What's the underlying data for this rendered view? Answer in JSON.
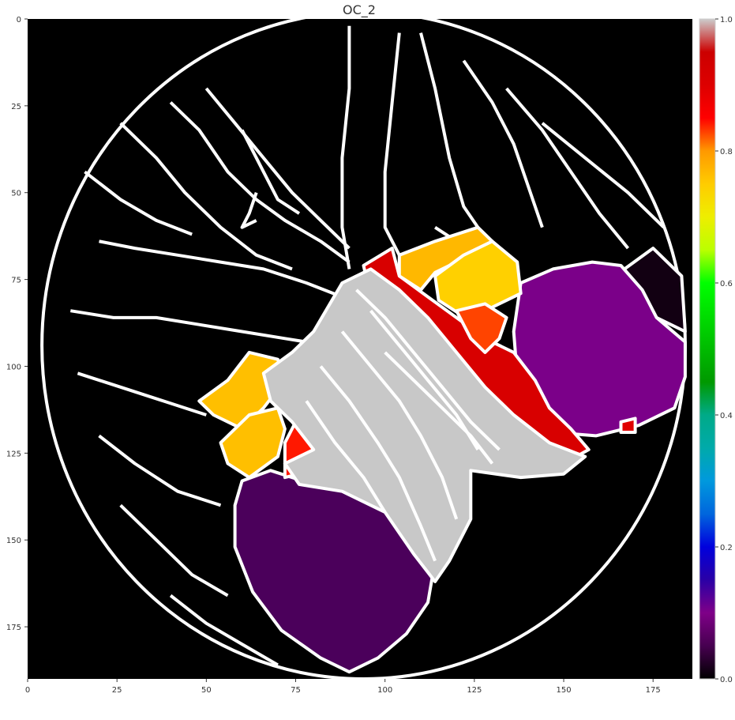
{
  "chart_data": {
    "type": "heatmap",
    "title": "OC_2",
    "xlabel": "",
    "ylabel": "",
    "xlim": [
      0,
      186
    ],
    "ylim": [
      190,
      0
    ],
    "x_ticks": [
      0,
      25,
      50,
      75,
      100,
      125,
      150,
      175
    ],
    "y_ticks": [
      0,
      25,
      50,
      75,
      100,
      125,
      150,
      175
    ],
    "colorbar": {
      "colormap": "nipy_spectral",
      "range": [
        0,
        1
      ],
      "ticks": [
        "0.0",
        "0.2",
        "0.4",
        "0.6",
        "0.8",
        "1.0"
      ]
    },
    "grid": false,
    "background_color": "#000000",
    "outline_color": "#ffffff",
    "brain_outline": {
      "center": [
        94,
        94
      ],
      "radius_x": 90,
      "radius_y": 96
    },
    "parcels": [
      {
        "name": "upper-right-small",
        "value": 0.04,
        "color": "#120012",
        "points": [
          [
            167,
            72
          ],
          [
            175,
            66
          ],
          [
            183,
            74
          ],
          [
            184,
            90
          ],
          [
            176,
            86
          ],
          [
            168,
            80
          ]
        ]
      },
      {
        "name": "upper-right-large",
        "value": 0.11,
        "color": "#7b0089",
        "points": [
          [
            138,
            76
          ],
          [
            147,
            72
          ],
          [
            158,
            70
          ],
          [
            166,
            71
          ],
          [
            172,
            78
          ],
          [
            176,
            86
          ],
          [
            184,
            93
          ],
          [
            184,
            103
          ],
          [
            181,
            112
          ],
          [
            171,
            117
          ],
          [
            159,
            120
          ],
          [
            147,
            119
          ],
          [
            141,
            114
          ],
          [
            137,
            103
          ],
          [
            136,
            90
          ]
        ]
      },
      {
        "name": "lower-left-large",
        "value": 0.06,
        "color": "#4b005b",
        "points": [
          [
            60,
            133
          ],
          [
            68,
            130
          ],
          [
            80,
            134
          ],
          [
            92,
            136
          ],
          [
            103,
            140
          ],
          [
            114,
            156
          ],
          [
            112,
            168
          ],
          [
            106,
            177
          ],
          [
            98,
            184
          ],
          [
            90,
            188
          ],
          [
            82,
            184
          ],
          [
            71,
            176
          ],
          [
            63,
            165
          ],
          [
            58,
            152
          ],
          [
            58,
            140
          ]
        ]
      },
      {
        "name": "top-center-orange",
        "value": 0.79,
        "color": "#ffb800",
        "points": [
          [
            104,
            68
          ],
          [
            114,
            64
          ],
          [
            126,
            60
          ],
          [
            130,
            64
          ],
          [
            124,
            68
          ],
          [
            114,
            73
          ],
          [
            110,
            78
          ],
          [
            104,
            74
          ]
        ]
      },
      {
        "name": "top-center-yellow",
        "value": 0.77,
        "color": "#ffd000",
        "points": [
          [
            114,
            74
          ],
          [
            122,
            68
          ],
          [
            130,
            64
          ],
          [
            137,
            70
          ],
          [
            138,
            79
          ],
          [
            128,
            84
          ],
          [
            121,
            85
          ],
          [
            115,
            81
          ]
        ]
      },
      {
        "name": "diagonal-red-strip",
        "value": 0.87,
        "color": "#d80000",
        "points": [
          [
            94,
            71
          ],
          [
            102,
            66
          ],
          [
            104,
            74
          ],
          [
            112,
            80
          ],
          [
            120,
            86
          ],
          [
            128,
            92
          ],
          [
            136,
            96
          ],
          [
            142,
            104
          ],
          [
            146,
            112
          ],
          [
            152,
            118
          ],
          [
            157,
            124
          ],
          [
            150,
            128
          ],
          [
            140,
            126
          ],
          [
            132,
            118
          ],
          [
            126,
            110
          ],
          [
            118,
            102
          ],
          [
            110,
            94
          ],
          [
            102,
            86
          ],
          [
            96,
            80
          ]
        ]
      },
      {
        "name": "red-orange-blob",
        "value": 0.84,
        "color": "#ff4400",
        "points": [
          [
            120,
            84
          ],
          [
            128,
            82
          ],
          [
            134,
            86
          ],
          [
            132,
            92
          ],
          [
            128,
            96
          ],
          [
            124,
            92
          ]
        ]
      },
      {
        "name": "left-orange-upper",
        "value": 0.79,
        "color": "#ffbf00",
        "points": [
          [
            56,
            104
          ],
          [
            62,
            96
          ],
          [
            70,
            98
          ],
          [
            72,
            104
          ],
          [
            66,
            112
          ],
          [
            60,
            118
          ],
          [
            52,
            114
          ],
          [
            48,
            110
          ]
        ]
      },
      {
        "name": "left-orange-lower",
        "value": 0.79,
        "color": "#ffbf00",
        "points": [
          [
            54,
            122
          ],
          [
            62,
            114
          ],
          [
            70,
            112
          ],
          [
            72,
            118
          ],
          [
            70,
            126
          ],
          [
            62,
            132
          ],
          [
            56,
            128
          ]
        ]
      },
      {
        "name": "red-triangle",
        "value": 0.86,
        "color": "#ff1800",
        "points": [
          [
            72,
            122
          ],
          [
            76,
            114
          ],
          [
            82,
            122
          ],
          [
            86,
            126
          ],
          [
            80,
            130
          ],
          [
            72,
            132
          ]
        ]
      },
      {
        "name": "small-red-dot",
        "value": 0.88,
        "color": "#e00000",
        "points": [
          [
            166,
            116
          ],
          [
            170,
            115
          ],
          [
            170,
            119
          ],
          [
            166,
            119
          ]
        ]
      },
      {
        "name": "central-grey",
        "value": 1.0,
        "color": "#c8c8c8",
        "points": [
          [
            88,
            76
          ],
          [
            96,
            72
          ],
          [
            104,
            78
          ],
          [
            112,
            86
          ],
          [
            120,
            96
          ],
          [
            128,
            106
          ],
          [
            136,
            114
          ],
          [
            146,
            122
          ],
          [
            156,
            126
          ],
          [
            150,
            131
          ],
          [
            138,
            132
          ],
          [
            124,
            130
          ],
          [
            124,
            144
          ],
          [
            118,
            156
          ],
          [
            114,
            162
          ],
          [
            108,
            154
          ],
          [
            100,
            142
          ],
          [
            88,
            136
          ],
          [
            76,
            134
          ],
          [
            72,
            128
          ],
          [
            80,
            124
          ],
          [
            74,
            116
          ],
          [
            68,
            110
          ],
          [
            66,
            102
          ],
          [
            74,
            96
          ],
          [
            80,
            90
          ]
        ]
      }
    ],
    "inner_contours": [
      [
        [
          92,
          78
        ],
        [
          100,
          86
        ],
        [
          108,
          96
        ],
        [
          116,
          106
        ],
        [
          124,
          116
        ],
        [
          132,
          124
        ]
      ],
      [
        [
          96,
          84
        ],
        [
          104,
          94
        ],
        [
          112,
          104
        ],
        [
          120,
          114
        ],
        [
          126,
          124
        ]
      ],
      [
        [
          88,
          90
        ],
        [
          96,
          100
        ],
        [
          104,
          110
        ],
        [
          110,
          120
        ],
        [
          116,
          132
        ],
        [
          120,
          144
        ]
      ],
      [
        [
          82,
          100
        ],
        [
          90,
          110
        ],
        [
          98,
          122
        ],
        [
          104,
          132
        ],
        [
          110,
          146
        ],
        [
          114,
          156
        ]
      ],
      [
        [
          78,
          110
        ],
        [
          86,
          122
        ],
        [
          94,
          132
        ],
        [
          100,
          142
        ]
      ],
      [
        [
          100,
          96
        ],
        [
          108,
          104
        ],
        [
          116,
          112
        ],
        [
          124,
          120
        ],
        [
          130,
          128
        ]
      ]
    ],
    "background_contours": [
      [
        [
          20,
          64
        ],
        [
          30,
          66
        ],
        [
          42,
          68
        ],
        [
          54,
          70
        ],
        [
          66,
          72
        ],
        [
          78,
          76
        ],
        [
          88,
          80
        ]
      ],
      [
        [
          12,
          84
        ],
        [
          24,
          86
        ],
        [
          36,
          86
        ],
        [
          48,
          88
        ],
        [
          60,
          90
        ],
        [
          72,
          92
        ],
        [
          84,
          94
        ]
      ],
      [
        [
          14,
          102
        ],
        [
          26,
          106
        ],
        [
          38,
          110
        ],
        [
          50,
          114
        ]
      ],
      [
        [
          26,
          30
        ],
        [
          36,
          40
        ],
        [
          44,
          50
        ],
        [
          54,
          60
        ],
        [
          64,
          68
        ],
        [
          74,
          72
        ]
      ],
      [
        [
          40,
          24
        ],
        [
          48,
          32
        ],
        [
          56,
          44
        ],
        [
          64,
          52
        ],
        [
          72,
          58
        ],
        [
          82,
          64
        ],
        [
          90,
          70
        ]
      ],
      [
        [
          50,
          20
        ],
        [
          58,
          30
        ],
        [
          66,
          40
        ],
        [
          74,
          50
        ],
        [
          82,
          58
        ],
        [
          90,
          66
        ]
      ],
      [
        [
          90,
          2
        ],
        [
          90,
          20
        ],
        [
          88,
          40
        ],
        [
          88,
          60
        ],
        [
          90,
          72
        ]
      ],
      [
        [
          104,
          4
        ],
        [
          102,
          24
        ],
        [
          100,
          44
        ],
        [
          100,
          60
        ],
        [
          104,
          68
        ]
      ],
      [
        [
          110,
          4
        ],
        [
          114,
          20
        ],
        [
          118,
          40
        ],
        [
          122,
          54
        ],
        [
          126,
          60
        ]
      ],
      [
        [
          122,
          12
        ],
        [
          130,
          24
        ],
        [
          136,
          36
        ],
        [
          140,
          48
        ],
        [
          144,
          60
        ]
      ],
      [
        [
          134,
          20
        ],
        [
          144,
          32
        ],
        [
          152,
          44
        ],
        [
          160,
          56
        ],
        [
          168,
          66
        ]
      ],
      [
        [
          144,
          30
        ],
        [
          156,
          40
        ],
        [
          168,
          50
        ],
        [
          178,
          60
        ]
      ],
      [
        [
          20,
          120
        ],
        [
          30,
          128
        ],
        [
          42,
          136
        ],
        [
          54,
          140
        ]
      ],
      [
        [
          26,
          140
        ],
        [
          36,
          150
        ],
        [
          46,
          160
        ],
        [
          56,
          166
        ]
      ],
      [
        [
          40,
          166
        ],
        [
          50,
          174
        ],
        [
          60,
          180
        ],
        [
          70,
          186
        ]
      ],
      [
        [
          16,
          44
        ],
        [
          26,
          52
        ],
        [
          36,
          58
        ],
        [
          46,
          62
        ]
      ],
      [
        [
          60,
          32
        ],
        [
          66,
          44
        ],
        [
          70,
          52
        ],
        [
          76,
          56
        ]
      ],
      [
        [
          64,
          50
        ],
        [
          62,
          56
        ],
        [
          60,
          60
        ],
        [
          64,
          58
        ]
      ],
      [
        [
          140,
          92
        ],
        [
          138,
          104
        ],
        [
          142,
          116
        ]
      ],
      [
        [
          114,
          60
        ],
        [
          120,
          64
        ],
        [
          126,
          68
        ]
      ]
    ]
  }
}
